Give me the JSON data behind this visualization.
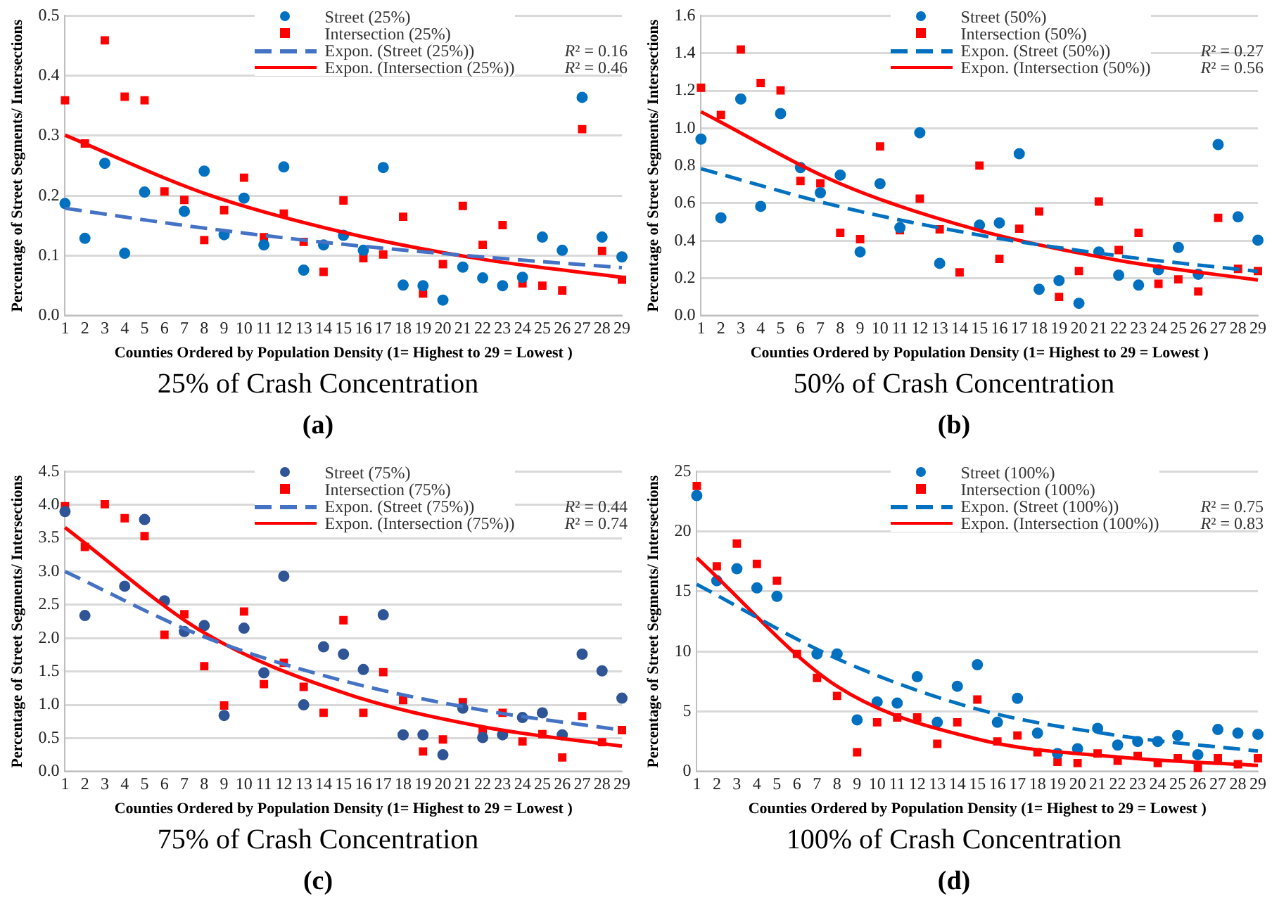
{
  "chart_data": [
    {
      "type": "scatter",
      "title": "25% of Crash Concentration",
      "subtitle": "(a)",
      "xlabel": "Counties Ordered by Population Density (1= Highest to 29 = Lowest )",
      "ylabel": "Percentage of Street Segments/ Intersections",
      "x": [
        1,
        2,
        3,
        4,
        5,
        6,
        7,
        8,
        9,
        10,
        11,
        12,
        13,
        14,
        15,
        16,
        17,
        18,
        19,
        20,
        21,
        22,
        23,
        24,
        25,
        26,
        27,
        28,
        29
      ],
      "xlim": [
        1,
        29
      ],
      "xticks": [
        1,
        2,
        3,
        4,
        5,
        6,
        7,
        8,
        9,
        10,
        11,
        12,
        13,
        14,
        15,
        16,
        17,
        18,
        19,
        20,
        21,
        22,
        23,
        24,
        25,
        26,
        27,
        28,
        29
      ],
      "ylim": [
        0,
        0.5
      ],
      "yticks": [
        {
          "value": 0,
          "label": "0.0"
        },
        0.1,
        0.2,
        0.3,
        0.4,
        0.5
      ],
      "grid": "y",
      "legend": "top right",
      "annotations": [
        "R² = 0.16",
        "R² = 0.46"
      ],
      "series": [
        {
          "name": "Street (25%)",
          "marker": "circle",
          "color": "#0070c0",
          "values": [
            0.187,
            0.129,
            0.254,
            0.104,
            0.206,
            null,
            0.174,
            0.241,
            0.135,
            0.196,
            0.118,
            0.248,
            0.076,
            0.118,
            0.134,
            0.109,
            0.247,
            0.051,
            0.05,
            0.026,
            0.081,
            0.063,
            0.05,
            0.064,
            0.131,
            0.109,
            0.364,
            0.131,
            0.098
          ]
        },
        {
          "name": "Intersection (25%)",
          "marker": "square",
          "color": "#ff0000",
          "values": [
            0.359,
            0.287,
            0.459,
            0.365,
            0.359,
            0.207,
            0.193,
            0.126,
            0.176,
            0.23,
            0.131,
            0.17,
            0.123,
            0.073,
            0.192,
            0.096,
            0.102,
            0.165,
            0.037,
            0.086,
            0.183,
            0.118,
            0.151,
            0.054,
            0.05,
            0.042,
            0.311,
            0.108,
            0.06
          ]
        },
        {
          "name": "Expon. (Street (25%))",
          "type": "line",
          "line_style": "dashed",
          "marker": "none",
          "color": "#4472c4",
          "x": [
            1,
            8,
            15,
            22,
            29
          ],
          "values": [
            0.179,
            0.146,
            0.119,
            0.098,
            0.08
          ]
        },
        {
          "name": "Expon. (Intersection (25%))",
          "type": "line",
          "line_style": "solid",
          "marker": "none",
          "color": "#ff0000",
          "x": [
            1,
            8,
            15,
            22,
            29
          ],
          "values": [
            0.301,
            0.204,
            0.139,
            0.094,
            0.064
          ]
        }
      ]
    },
    {
      "type": "scatter",
      "title": "50% of Crash Concentration",
      "subtitle": "(b)",
      "xlabel": "Counties Ordered by Population Density (1= Highest to 29 = Lowest )",
      "ylabel": "Percentage of Street Segments/ Intersections",
      "x": [
        1,
        2,
        3,
        4,
        5,
        6,
        7,
        8,
        9,
        10,
        11,
        12,
        13,
        14,
        15,
        16,
        17,
        18,
        19,
        20,
        21,
        22,
        23,
        24,
        25,
        26,
        27,
        28,
        29
      ],
      "xlim": [
        1,
        29
      ],
      "xticks": [
        1,
        2,
        3,
        4,
        5,
        6,
        7,
        8,
        9,
        10,
        11,
        12,
        13,
        14,
        15,
        16,
        17,
        18,
        19,
        20,
        21,
        22,
        23,
        24,
        25,
        26,
        27,
        28,
        29
      ],
      "ylim": [
        0,
        1.6
      ],
      "yticks": [
        {
          "value": 0,
          "label": "0.0"
        },
        0.2,
        0.4,
        0.6,
        0.8,
        {
          "value": 1,
          "label": "1.0"
        },
        1.2,
        1.4,
        1.6
      ],
      "grid": "y",
      "legend": "top right",
      "annotations": [
        "R² = 0.27",
        "R² = 0.56"
      ],
      "series": [
        {
          "name": "Street (50%)",
          "marker": "circle",
          "color": "#0070c0",
          "values": [
            0.942,
            0.522,
            1.156,
            0.583,
            1.078,
            0.79,
            0.656,
            0.75,
            0.34,
            0.704,
            0.47,
            0.976,
            0.279,
            null,
            0.483,
            0.495,
            0.864,
            0.141,
            0.187,
            0.066,
            0.34,
            0.216,
            0.163,
            0.245,
            0.364,
            0.221,
            0.913,
            0.527,
            0.403
          ]
        },
        {
          "name": "Intersection (50%)",
          "marker": "square",
          "color": "#ff0000",
          "values": [
            1.216,
            1.071,
            1.42,
            1.241,
            1.202,
            0.719,
            0.706,
            0.442,
            0.408,
            0.903,
            0.456,
            0.624,
            0.461,
            0.231,
            0.801,
            0.303,
            0.464,
            0.556,
            0.1,
            0.238,
            0.609,
            0.35,
            0.442,
            0.17,
            0.194,
            0.129,
            0.522,
            0.25,
            0.238
          ]
        },
        {
          "name": "Expon. (Street (50%))",
          "type": "line",
          "line_style": "dashed",
          "marker": "none",
          "color": "#0070c0",
          "x": [
            1,
            8,
            15,
            22,
            29
          ],
          "values": [
            0.784,
            0.581,
            0.43,
            0.319,
            0.236
          ]
        },
        {
          "name": "Expon. (Intersection (50%))",
          "type": "line",
          "line_style": "solid",
          "marker": "none",
          "color": "#ff0000",
          "x": [
            1,
            8,
            15,
            22,
            29
          ],
          "values": [
            1.088,
            0.704,
            0.455,
            0.295,
            0.19
          ]
        }
      ]
    },
    {
      "type": "scatter",
      "title": "75% of Crash Concentration",
      "subtitle": "(c)",
      "xlabel": "Counties Ordered by Population Density (1= Highest to 29 = Lowest )",
      "ylabel": "Percentage of Street Segments/ Intersections",
      "x": [
        1,
        2,
        3,
        4,
        5,
        6,
        7,
        8,
        9,
        10,
        11,
        12,
        13,
        14,
        15,
        16,
        17,
        18,
        19,
        20,
        21,
        22,
        23,
        24,
        25,
        26,
        27,
        28,
        29
      ],
      "xlim": [
        1,
        29
      ],
      "xticks": [
        1,
        2,
        3,
        4,
        5,
        6,
        7,
        8,
        9,
        10,
        11,
        12,
        13,
        14,
        15,
        16,
        17,
        18,
        19,
        20,
        21,
        22,
        23,
        24,
        25,
        26,
        27,
        28,
        29
      ],
      "ylim": [
        0,
        4.5
      ],
      "yticks": [
        {
          "value": 0,
          "label": "0.0"
        },
        0.5,
        {
          "value": 1,
          "label": "1.0"
        },
        1.5,
        {
          "value": 2,
          "label": "2.0"
        },
        2.5,
        {
          "value": 3,
          "label": "3.0"
        },
        3.5,
        {
          "value": 4,
          "label": "4.0"
        },
        4.5
      ],
      "grid": "y",
      "legend": "top right",
      "annotations": [
        "R² = 0.44",
        "R² = 0.74"
      ],
      "series": [
        {
          "name": "Street (75%)",
          "marker": "circle",
          "color": "#2f5597",
          "values": [
            3.9,
            2.34,
            null,
            2.78,
            3.78,
            2.56,
            2.1,
            2.19,
            0.84,
            2.15,
            1.48,
            2.93,
            1.0,
            1.87,
            1.76,
            1.53,
            2.35,
            0.55,
            0.55,
            0.25,
            0.95,
            0.51,
            0.55,
            0.81,
            0.88,
            0.55,
            1.76,
            1.51,
            1.1
          ]
        },
        {
          "name": "Intersection (75%)",
          "marker": "square",
          "color": "#ff0000",
          "values": [
            3.98,
            3.37,
            4.01,
            3.8,
            3.53,
            2.05,
            2.36,
            1.58,
            0.99,
            2.4,
            1.31,
            1.63,
            1.27,
            0.88,
            2.27,
            0.88,
            1.49,
            1.07,
            0.3,
            0.48,
            1.04,
            0.62,
            0.88,
            0.45,
            0.56,
            0.21,
            0.83,
            0.44,
            0.62
          ]
        },
        {
          "name": "Expon. (Street (75%))",
          "type": "line",
          "line_style": "dashed",
          "marker": "none",
          "color": "#4472c4",
          "x": [
            1,
            8,
            15,
            22,
            29
          ],
          "values": [
            3.0,
            2.02,
            1.36,
            0.92,
            0.62
          ]
        },
        {
          "name": "Expon. (Intersection (75%))",
          "type": "line",
          "line_style": "solid",
          "marker": "none",
          "color": "#ff0000",
          "x": [
            1,
            8,
            15,
            22,
            29
          ],
          "values": [
            3.66,
            2.08,
            1.18,
            0.67,
            0.38
          ]
        }
      ]
    },
    {
      "type": "scatter",
      "title": "100% of Crash Concentration",
      "subtitle": "(d)",
      "xlabel": "Counties Ordered by Population Density (1= Highest to 29 = Lowest )",
      "ylabel": "Percentage of Street Segments/ Intersections",
      "x": [
        1,
        2,
        3,
        4,
        5,
        6,
        7,
        8,
        9,
        10,
        11,
        12,
        13,
        14,
        15,
        16,
        17,
        18,
        19,
        20,
        21,
        22,
        23,
        24,
        25,
        26,
        27,
        28,
        29
      ],
      "xlim": [
        1,
        29
      ],
      "xticks": [
        1,
        2,
        3,
        4,
        5,
        6,
        7,
        8,
        9,
        10,
        11,
        12,
        13,
        14,
        15,
        16,
        17,
        18,
        19,
        20,
        21,
        22,
        23,
        24,
        25,
        26,
        27,
        28,
        29
      ],
      "ylim": [
        0,
        25
      ],
      "yticks": [
        0,
        5,
        10,
        15,
        20,
        25
      ],
      "grid": "y",
      "legend": "top right",
      "annotations": [
        "R² = 0.75",
        "R² = 0.83"
      ],
      "series": [
        {
          "name": "Street (100%)",
          "marker": "circle",
          "color": "#0070c0",
          "values": [
            23.0,
            15.9,
            16.9,
            15.3,
            14.6,
            null,
            9.8,
            9.8,
            4.3,
            5.8,
            5.7,
            7.9,
            4.1,
            7.1,
            8.9,
            4.1,
            6.1,
            3.2,
            1.5,
            1.9,
            3.6,
            2.2,
            2.5,
            2.5,
            3.0,
            1.4,
            3.5,
            3.2,
            3.1
          ]
        },
        {
          "name": "Intersection (100%)",
          "marker": "square",
          "color": "#ff0000",
          "values": [
            23.8,
            17.1,
            19.0,
            17.3,
            15.9,
            9.8,
            7.8,
            6.3,
            1.6,
            4.1,
            4.5,
            4.5,
            2.3,
            4.1,
            6.0,
            2.5,
            3.0,
            1.6,
            0.8,
            0.7,
            1.5,
            0.9,
            1.3,
            0.7,
            1.1,
            0.3,
            1.1,
            0.6,
            1.1
          ]
        },
        {
          "name": "Expon. (Street (100%))",
          "type": "line",
          "line_style": "dashed",
          "marker": "none",
          "color": "#0070c0",
          "x": [
            1,
            8,
            15,
            22,
            29
          ],
          "values": [
            15.6,
            9.4,
            5.2,
            3.0,
            1.7
          ]
        },
        {
          "name": "Expon. (Intersection (100%))",
          "type": "line",
          "line_style": "solid",
          "marker": "none",
          "color": "#ff0000",
          "x": [
            1,
            8,
            15,
            22,
            29
          ],
          "values": [
            17.8,
            7.1,
            2.7,
            1.2,
            0.5
          ]
        }
      ]
    }
  ]
}
